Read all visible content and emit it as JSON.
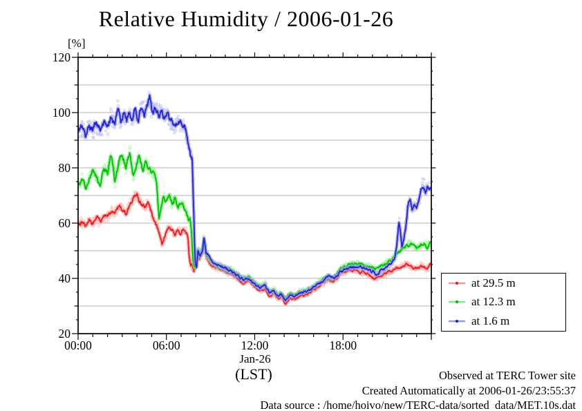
{
  "chart": {
    "title": "Relative Humidity / 2006-01-26",
    "y_unit_label": "[%]",
    "x_date_label": "Jan-26",
    "x_unit_label": "(LST)"
  },
  "legend": {
    "items": [
      {
        "label": "at 29.5 m",
        "color": "#e01f1f",
        "band": "#fb9797"
      },
      {
        "label": "at 12.3 m",
        "color": "#00bd00",
        "band": "#80ea80"
      },
      {
        "label": "at 1.6 m",
        "color": "#2323c4",
        "band": "#9595e9"
      }
    ]
  },
  "footer": {
    "line1": "Observed at TERC Tower site",
    "line2": "Created Automatically at 2006-01-26/23:55:37",
    "line3": "Data source : /home/hoivo/new/TERC-data/sorted  data/MET.10s.dat"
  },
  "colors": {
    "grid": "#b4b4b4",
    "frame": "#000000",
    "text": "#000000"
  },
  "chart_data": {
    "type": "line",
    "title": "Relative Humidity / 2006-01-26",
    "xlabel": "(LST)",
    "ylabel": "[%]",
    "xlim_hours": [
      0,
      24
    ],
    "ylim": [
      20,
      120
    ],
    "grid": "horizontal every 10",
    "x_ticks_major_hours": [
      0,
      6,
      12,
      18
    ],
    "x_tick_labels": [
      "00:00",
      "06:00",
      "12:00",
      "18:00"
    ],
    "x_minor_tick_hours": 1,
    "y_ticks_major": [
      20,
      40,
      60,
      80,
      100,
      120
    ],
    "y_minor_tick": 5,
    "legend_position": "right-bottom-outside",
    "series": [
      {
        "id": "red",
        "name": "at 29.5 m",
        "height_m": 29.5,
        "color": "#e01f1f",
        "band_color": "#fb9797",
        "points": [
          [
            0,
            59.5
          ],
          [
            0.25,
            60.5
          ],
          [
            0.5,
            58.5
          ],
          [
            0.75,
            61
          ],
          [
            1,
            60
          ],
          [
            1.25,
            62
          ],
          [
            1.5,
            60.5
          ],
          [
            1.75,
            62.5
          ],
          [
            2,
            62
          ],
          [
            2.25,
            64.5
          ],
          [
            2.5,
            63.5
          ],
          [
            2.75,
            66.5
          ],
          [
            3,
            65
          ],
          [
            3.25,
            63.5
          ],
          [
            3.5,
            66
          ],
          [
            3.75,
            69.5
          ],
          [
            4,
            70
          ],
          [
            4.25,
            67.5
          ],
          [
            4.5,
            65.5
          ],
          [
            4.75,
            67
          ],
          [
            5,
            63.5
          ],
          [
            5.25,
            60
          ],
          [
            5.5,
            56.5
          ],
          [
            5.7,
            52.5
          ],
          [
            5.9,
            55
          ],
          [
            6.1,
            58.5
          ],
          [
            6.35,
            58
          ],
          [
            6.6,
            55.5
          ],
          [
            6.8,
            57.5
          ],
          [
            7,
            56.5
          ],
          [
            7.2,
            58
          ],
          [
            7.35,
            57
          ],
          [
            7.45,
            55
          ],
          [
            7.55,
            47.5
          ],
          [
            7.65,
            44.5
          ],
          [
            7.75,
            45.5
          ],
          [
            7.85,
            42.5
          ],
          [
            7.95,
            43.5
          ],
          [
            8.1,
            49.5
          ],
          [
            8.25,
            47
          ],
          [
            8.4,
            48.5
          ],
          [
            8.55,
            52.5
          ],
          [
            8.7,
            47.5
          ],
          [
            9,
            45.5
          ],
          [
            9.3,
            44
          ],
          [
            9.6,
            43.5
          ],
          [
            10,
            42.5
          ],
          [
            10.4,
            41.5
          ],
          [
            10.8,
            40
          ],
          [
            11.2,
            38.5
          ],
          [
            11.6,
            39.5
          ],
          [
            12,
            37
          ],
          [
            12.4,
            35.5
          ],
          [
            12.7,
            36.5
          ],
          [
            13,
            33.5
          ],
          [
            13.3,
            34.5
          ],
          [
            13.6,
            32.5
          ],
          [
            13.8,
            33.5
          ],
          [
            14.1,
            31
          ],
          [
            14.4,
            33
          ],
          [
            14.7,
            32.5
          ],
          [
            15,
            33.5
          ],
          [
            15.4,
            34
          ],
          [
            15.8,
            35
          ],
          [
            16.2,
            36.5
          ],
          [
            16.6,
            38
          ],
          [
            17,
            39.5
          ],
          [
            17.4,
            39
          ],
          [
            17.85,
            41.5
          ],
          [
            18.2,
            42.5
          ],
          [
            18.6,
            43
          ],
          [
            19.1,
            42.5
          ],
          [
            19.5,
            42
          ],
          [
            20,
            40.5
          ],
          [
            20.3,
            40
          ],
          [
            20.6,
            41
          ],
          [
            21,
            42
          ],
          [
            21.5,
            43.5
          ],
          [
            22,
            44.5
          ],
          [
            22.3,
            45.2
          ],
          [
            22.8,
            43.5
          ],
          [
            23.3,
            44.5
          ],
          [
            23.7,
            43.2
          ],
          [
            23.92,
            45
          ]
        ]
      },
      {
        "id": "green",
        "name": "at 12.3 m",
        "height_m": 12.3,
        "color": "#00bd00",
        "band_color": "#80ea80",
        "points": [
          [
            0,
            73
          ],
          [
            0.25,
            75.5
          ],
          [
            0.5,
            72.5
          ],
          [
            0.75,
            76
          ],
          [
            1,
            79.5
          ],
          [
            1.25,
            76.5
          ],
          [
            1.5,
            74
          ],
          [
            1.75,
            80
          ],
          [
            2,
            78
          ],
          [
            2.25,
            85
          ],
          [
            2.5,
            74.5
          ],
          [
            2.75,
            81.5
          ],
          [
            3,
            84
          ],
          [
            3.25,
            80
          ],
          [
            3.5,
            85.5
          ],
          [
            3.75,
            76
          ],
          [
            4,
            82
          ],
          [
            4.15,
            84.5
          ],
          [
            4.4,
            79
          ],
          [
            4.6,
            82.5
          ],
          [
            4.8,
            79
          ],
          [
            5,
            78.5
          ],
          [
            5.2,
            78
          ],
          [
            5.35,
            74
          ],
          [
            5.5,
            61.5
          ],
          [
            5.65,
            66
          ],
          [
            5.8,
            70
          ],
          [
            6,
            68
          ],
          [
            6.2,
            70
          ],
          [
            6.4,
            66.5
          ],
          [
            6.6,
            68.5
          ],
          [
            6.8,
            66
          ],
          [
            7,
            68
          ],
          [
            7.2,
            66
          ],
          [
            7.35,
            64
          ],
          [
            7.5,
            61
          ],
          [
            7.6,
            62.5
          ],
          [
            7.7,
            57
          ],
          [
            7.8,
            47
          ],
          [
            7.9,
            44
          ],
          [
            8,
            46
          ],
          [
            8.1,
            50.5
          ],
          [
            8.25,
            48
          ],
          [
            8.4,
            49.5
          ],
          [
            8.55,
            53.5
          ],
          [
            8.7,
            48.5
          ],
          [
            9,
            46.5
          ],
          [
            9.3,
            45
          ],
          [
            9.6,
            44.5
          ],
          [
            10,
            43.5
          ],
          [
            10.4,
            43
          ],
          [
            10.8,
            41.5
          ],
          [
            11.2,
            40
          ],
          [
            11.6,
            40.5
          ],
          [
            12,
            38.5
          ],
          [
            12.4,
            37
          ],
          [
            12.7,
            38
          ],
          [
            13,
            35
          ],
          [
            13.3,
            36
          ],
          [
            13.6,
            34
          ],
          [
            13.8,
            35
          ],
          [
            14.1,
            32.5
          ],
          [
            14.4,
            34.5
          ],
          [
            14.7,
            34
          ],
          [
            15,
            35
          ],
          [
            15.4,
            35.5
          ],
          [
            15.8,
            36.5
          ],
          [
            16.2,
            38
          ],
          [
            16.6,
            39.5
          ],
          [
            17,
            41
          ],
          [
            17.4,
            40.5
          ],
          [
            17.85,
            43.5
          ],
          [
            18.2,
            44.5
          ],
          [
            18.6,
            45
          ],
          [
            19.1,
            45.5
          ],
          [
            19.5,
            44.5
          ],
          [
            20,
            43.8
          ],
          [
            20.3,
            43.5
          ],
          [
            20.6,
            44.5
          ],
          [
            21,
            45.6
          ],
          [
            21.3,
            46.5
          ],
          [
            21.6,
            48.5
          ],
          [
            22,
            51
          ],
          [
            22.2,
            51.5
          ],
          [
            22.6,
            52.8
          ],
          [
            23,
            50.8
          ],
          [
            23.4,
            52.5
          ],
          [
            23.7,
            51.5
          ],
          [
            23.92,
            53.5
          ]
        ]
      },
      {
        "id": "blue",
        "name": "at 1.6 m",
        "height_m": 1.6,
        "color": "#2323c4",
        "band_color": "#9595e9",
        "points": [
          [
            0,
            92.5
          ],
          [
            0.25,
            94.5
          ],
          [
            0.5,
            91
          ],
          [
            0.75,
            95.5
          ],
          [
            1,
            93
          ],
          [
            1.25,
            96
          ],
          [
            1.5,
            92.5
          ],
          [
            1.75,
            97
          ],
          [
            2,
            94
          ],
          [
            2.25,
            98.5
          ],
          [
            2.5,
            95
          ],
          [
            2.7,
            102
          ],
          [
            2.9,
            96
          ],
          [
            3.1,
            99.5
          ],
          [
            3.3,
            96.5
          ],
          [
            3.5,
            100
          ],
          [
            3.7,
            97
          ],
          [
            3.9,
            101
          ],
          [
            4.1,
            98
          ],
          [
            4.3,
            102.5
          ],
          [
            4.5,
            100
          ],
          [
            4.7,
            103.5
          ],
          [
            4.85,
            104.5
          ],
          [
            5,
            101
          ],
          [
            5.2,
            102.5
          ],
          [
            5.5,
            99.5
          ],
          [
            5.7,
            101.5
          ],
          [
            5.9,
            98
          ],
          [
            6.1,
            99.5
          ],
          [
            6.3,
            96
          ],
          [
            6.6,
            95
          ],
          [
            6.8,
            97.5
          ],
          [
            7,
            94.5
          ],
          [
            7.2,
            96
          ],
          [
            7.35,
            92
          ],
          [
            7.5,
            88.5
          ],
          [
            7.65,
            84.5
          ],
          [
            7.75,
            83.5
          ],
          [
            7.85,
            65
          ],
          [
            7.95,
            46
          ],
          [
            8.05,
            44
          ],
          [
            8.15,
            50.5
          ],
          [
            8.3,
            48
          ],
          [
            8.45,
            50
          ],
          [
            8.55,
            55
          ],
          [
            8.7,
            49
          ],
          [
            9,
            47
          ],
          [
            9.3,
            45.5
          ],
          [
            9.6,
            44.5
          ],
          [
            10,
            43.5
          ],
          [
            10.4,
            42.5
          ],
          [
            10.8,
            41
          ],
          [
            11.2,
            39.5
          ],
          [
            11.6,
            40
          ],
          [
            12,
            38
          ],
          [
            12.4,
            36.5
          ],
          [
            12.7,
            37.5
          ],
          [
            13,
            34.5
          ],
          [
            13.3,
            35.5
          ],
          [
            13.6,
            33.5
          ],
          [
            13.8,
            34.5
          ],
          [
            14.1,
            32
          ],
          [
            14.4,
            34
          ],
          [
            14.7,
            33.5
          ],
          [
            15,
            34.5
          ],
          [
            15.4,
            35
          ],
          [
            15.8,
            36
          ],
          [
            16.2,
            37.5
          ],
          [
            16.6,
            39
          ],
          [
            17,
            40.5
          ],
          [
            17.4,
            40
          ],
          [
            17.85,
            42.5
          ],
          [
            18.2,
            43.5
          ],
          [
            18.6,
            44
          ],
          [
            19.1,
            44
          ],
          [
            19.5,
            43.5
          ],
          [
            20,
            42.6
          ],
          [
            20.3,
            41.4
          ],
          [
            20.6,
            42.5
          ],
          [
            21,
            44.1
          ],
          [
            21.3,
            45.5
          ],
          [
            21.5,
            47
          ],
          [
            21.65,
            52
          ],
          [
            21.8,
            60.5
          ],
          [
            21.9,
            57
          ],
          [
            22,
            52
          ],
          [
            22.1,
            53.5
          ],
          [
            22.25,
            58
          ],
          [
            22.4,
            65.5
          ],
          [
            22.55,
            67.5
          ],
          [
            22.7,
            64.5
          ],
          [
            22.85,
            66.5
          ],
          [
            23,
            65.5
          ],
          [
            23.15,
            68
          ],
          [
            23.3,
            72
          ],
          [
            23.45,
            74
          ],
          [
            23.6,
            71.5
          ],
          [
            23.75,
            73.5
          ],
          [
            23.92,
            72.5
          ]
        ]
      }
    ]
  }
}
